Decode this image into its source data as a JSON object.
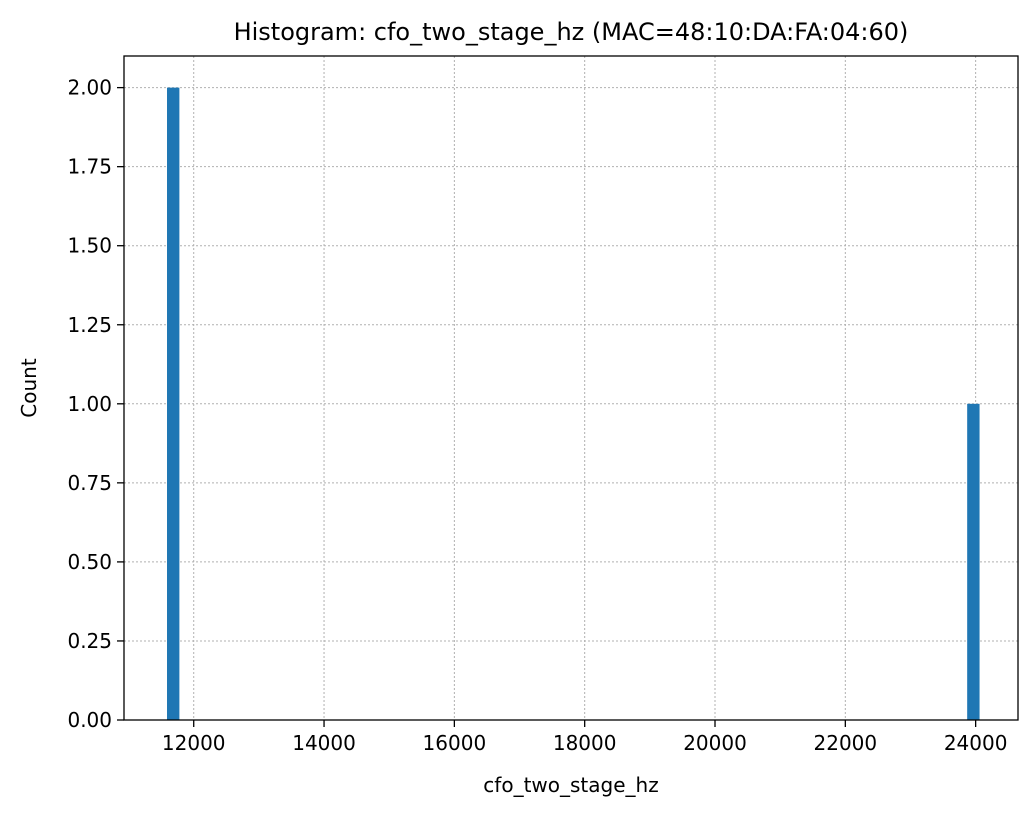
{
  "chart_data": {
    "type": "bar",
    "title": "Histogram: cfo_two_stage_hz (MAC=48:10:DA:FA:04:60)",
    "xlabel": "cfo_two_stage_hz",
    "ylabel": "Count",
    "xlim": [
      10930,
      24650
    ],
    "ylim": [
      0,
      2.1
    ],
    "xticks": [
      12000,
      14000,
      16000,
      18000,
      20000,
      22000,
      24000
    ],
    "xtick_labels": [
      "12000",
      "14000",
      "16000",
      "18000",
      "20000",
      "22000",
      "24000"
    ],
    "yticks": [
      0,
      0.25,
      0.5,
      0.75,
      1.0,
      1.25,
      1.5,
      1.75,
      2.0
    ],
    "ytick_labels": [
      "0.00",
      "0.25",
      "0.50",
      "0.75",
      "1.00",
      "1.25",
      "1.50",
      "1.75",
      "2.00"
    ],
    "grid": true,
    "bar_color": "#1f77b4",
    "bins": [
      {
        "x0": 11590,
        "x1": 11780,
        "count": 2
      },
      {
        "x0": 23870,
        "x1": 24060,
        "count": 1
      }
    ]
  }
}
